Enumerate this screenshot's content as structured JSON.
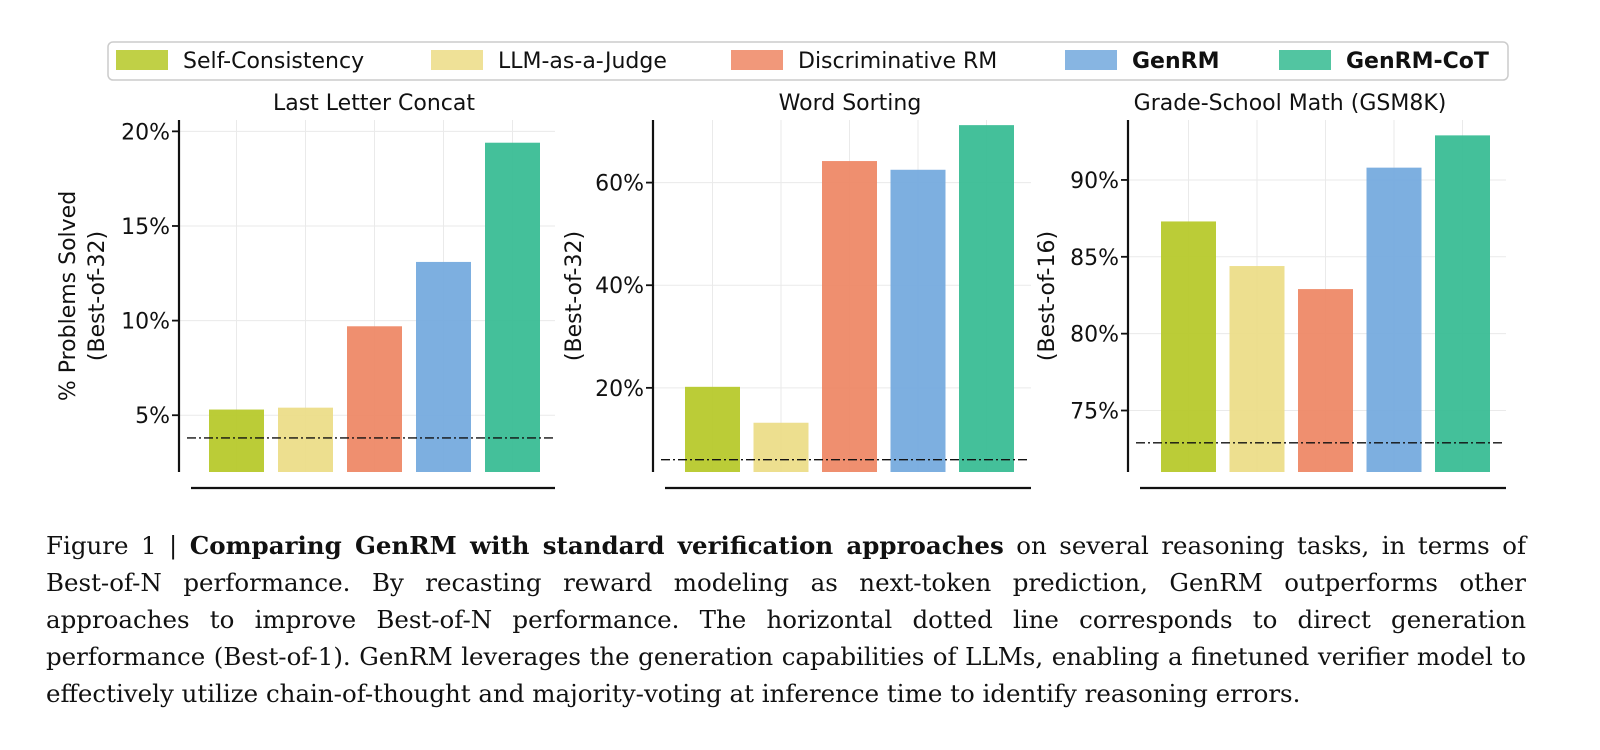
{
  "legend": [
    {
      "label": "Self-Consistency",
      "color": "#b5c826",
      "bold": false
    },
    {
      "label": "LLM-as-a-Judge",
      "color": "#ecdc85",
      "bold": false
    },
    {
      "label": "Discriminative RM",
      "color": "#ee8663",
      "bold": false
    },
    {
      "label": "GenRM",
      "color": "#72a8dd",
      "bold": true
    },
    {
      "label": "GenRM-CoT",
      "color": "#34bb91",
      "bold": true
    }
  ],
  "chart_data": [
    {
      "type": "bar",
      "title": "Last Letter Concat",
      "ylabel": [
        "% Problems Solved",
        "(Best-of-32)"
      ],
      "categories": [
        "Self-Consistency",
        "LLM-as-a-Judge",
        "Discriminative RM",
        "GenRM",
        "GenRM-CoT"
      ],
      "values": [
        5.3,
        5.4,
        9.7,
        13.1,
        19.4
      ],
      "baseline": 3.8,
      "ylim": [
        2.0,
        20.6
      ],
      "yticks": [
        5,
        10,
        15,
        20
      ],
      "ytick_labels": [
        "5%",
        "10%",
        "15%",
        "20%"
      ],
      "grid": true
    },
    {
      "type": "bar",
      "title": "Word Sorting",
      "ylabel": [
        "(Best-of-32)"
      ],
      "categories": [
        "Self-Consistency",
        "LLM-as-a-Judge",
        "Discriminative RM",
        "GenRM",
        "GenRM-CoT"
      ],
      "values": [
        20.2,
        13.2,
        64.2,
        62.5,
        71.2
      ],
      "baseline": 6.0,
      "ylim": [
        3.6,
        72.2
      ],
      "yticks": [
        20,
        40,
        60
      ],
      "ytick_labels": [
        "20%",
        "40%",
        "60%"
      ],
      "grid": true
    },
    {
      "type": "bar",
      "title": "Grade-School Math (GSM8K)",
      "ylabel": [
        "(Best-of-16)"
      ],
      "categories": [
        "Self-Consistency",
        "LLM-as-a-Judge",
        "Discriminative RM",
        "GenRM",
        "GenRM-CoT"
      ],
      "values": [
        87.3,
        84.4,
        82.9,
        90.8,
        92.9
      ],
      "baseline": 72.9,
      "ylim": [
        71.0,
        93.9
      ],
      "yticks": [
        75,
        80,
        85,
        90
      ],
      "ytick_labels": [
        "75%",
        "80%",
        "85%",
        "90%"
      ],
      "grid": true
    }
  ],
  "caption": {
    "prefix": "Figure 1 | ",
    "bold": "Comparing GenRM with standard verification approaches",
    "rest": " on several reasoning tasks, in terms of Best-of-N performance. By recasting reward modeling as next-token prediction, GenRM outperforms other approaches to improve Best-of-N performance. The horizontal dotted line corresponds to direct generation performance (Best-of-1). GenRM leverages the generation capabilities of LLMs, enabling a finetuned verifier model to effectively utilize chain-of-thought and majority-voting at inference time to identify reasoning errors."
  }
}
